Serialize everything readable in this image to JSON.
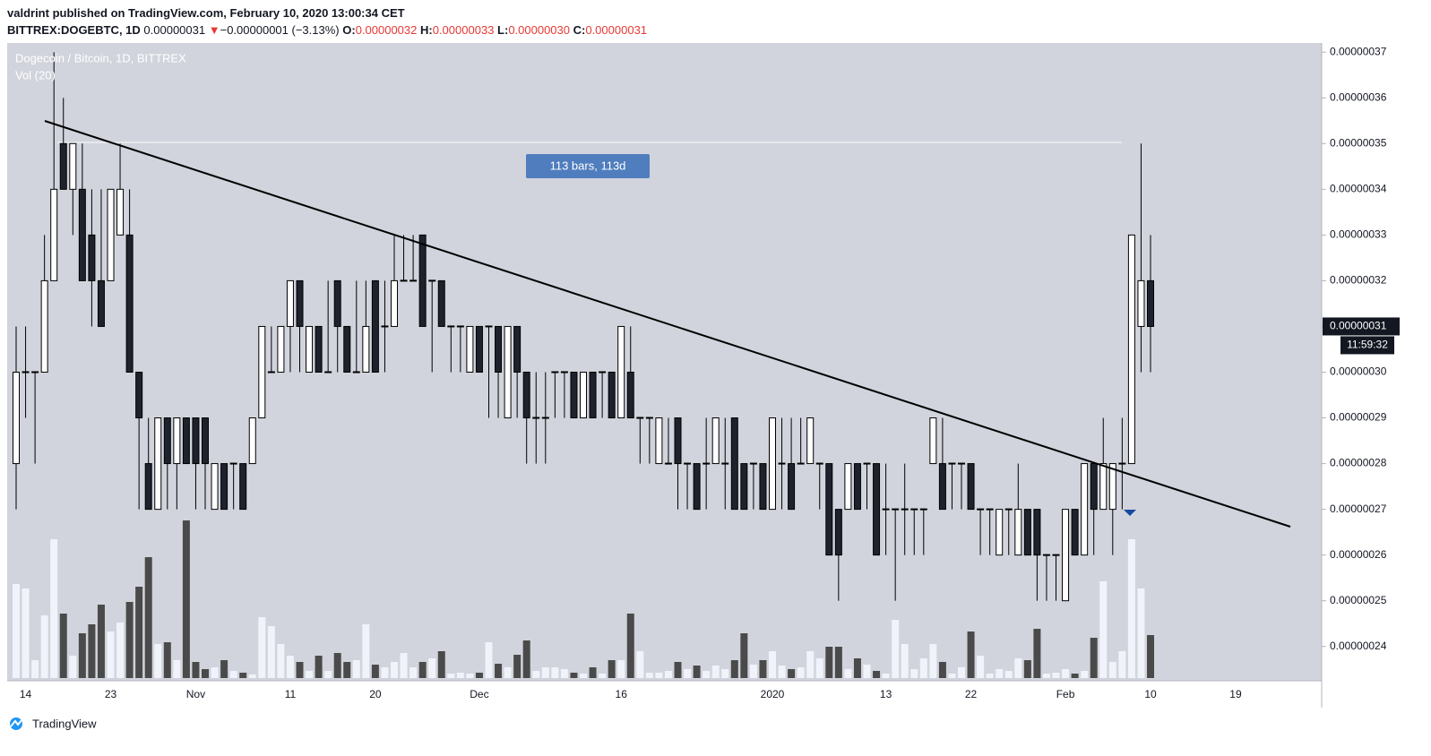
{
  "header": {
    "published": "valdrint published on TradingView.com, February 10, 2020 13:00:34 CET",
    "symbol": "BITTREX:DOGEBTC, 1D",
    "last": "0.00000031",
    "change_arrow": "▼",
    "change": "−0.00000001 (−3.13%)",
    "ohlc": [
      {
        "label": "O:",
        "value": "0.00000032"
      },
      {
        "label": "H:",
        "value": "0.00000033"
      },
      {
        "label": "L:",
        "value": "0.00000030"
      },
      {
        "label": "C:",
        "value": "0.00000031"
      }
    ]
  },
  "chart_data": {
    "type": "candlestick",
    "title": "Dogecoin / Bitcoin, 1D, BITTREX",
    "volume_title": "Vol (20)",
    "annotation": "113 bars, 113d",
    "last_price": {
      "value": 3.1e-07,
      "label": "0.00000031"
    },
    "countdown": "11:59:32",
    "categories": [
      null,
      "14",
      null,
      null,
      null,
      null,
      null,
      null,
      null,
      null,
      "23",
      null,
      null,
      null,
      null,
      null,
      null,
      null,
      null,
      "Nov",
      null,
      null,
      null,
      null,
      null,
      null,
      null,
      null,
      null,
      "11",
      null,
      null,
      null,
      null,
      null,
      null,
      null,
      null,
      "20",
      null,
      null,
      null,
      null,
      null,
      null,
      null,
      null,
      null,
      null,
      "Dec",
      null,
      null,
      null,
      null,
      null,
      null,
      null,
      null,
      null,
      null,
      null,
      null,
      null,
      null,
      "16",
      null,
      null,
      null,
      null,
      null,
      null,
      null,
      null,
      null,
      null,
      null,
      null,
      null,
      null,
      null,
      "2020",
      null,
      null,
      null,
      null,
      null,
      null,
      null,
      null,
      null,
      null,
      null,
      "13",
      null,
      null,
      null,
      null,
      null,
      null,
      null,
      null,
      "22",
      null,
      null,
      null,
      null,
      null,
      null,
      null,
      null,
      null,
      "Feb",
      null,
      null,
      null,
      null,
      null,
      null,
      null,
      null,
      "10",
      null,
      null,
      null,
      null,
      null,
      null,
      null,
      null,
      "19"
    ],
    "open": [
      2.8e-07,
      3e-07,
      3e-07,
      3e-07,
      3.2e-07,
      3.5e-07,
      3.4e-07,
      3.4e-07,
      3.3e-07,
      3.2e-07,
      3.2e-07,
      3.3e-07,
      3.3e-07,
      3e-07,
      2.8e-07,
      2.7e-07,
      2.9e-07,
      2.8e-07,
      2.9e-07,
      2.9e-07,
      2.9e-07,
      2.7e-07,
      2.8e-07,
      2.8e-07,
      2.8e-07,
      2.8e-07,
      2.9e-07,
      3e-07,
      3e-07,
      3.1e-07,
      3.2e-07,
      3e-07,
      3.1e-07,
      3e-07,
      3.2e-07,
      3.1e-07,
      3e-07,
      3e-07,
      3.2e-07,
      3.1e-07,
      3.1e-07,
      3.2e-07,
      3.2e-07,
      3.3e-07,
      3.2e-07,
      3.2e-07,
      3.1e-07,
      3.1e-07,
      3e-07,
      3.1e-07,
      3.1e-07,
      3.1e-07,
      2.9e-07,
      3.1e-07,
      3e-07,
      2.9e-07,
      2.9e-07,
      3e-07,
      3e-07,
      3e-07,
      2.9e-07,
      3e-07,
      3e-07,
      3e-07,
      2.9e-07,
      3e-07,
      2.9e-07,
      2.9e-07,
      2.8e-07,
      2.8e-07,
      2.9e-07,
      2.8e-07,
      2.8e-07,
      2.8e-07,
      2.8e-07,
      2.8e-07,
      2.9e-07,
      2.8e-07,
      2.8e-07,
      2.8e-07,
      2.7e-07,
      2.8e-07,
      2.8e-07,
      2.8e-07,
      2.8e-07,
      2.8e-07,
      2.8e-07,
      2.7e-07,
      2.7e-07,
      2.8e-07,
      2.8e-07,
      2.8e-07,
      2.7e-07,
      2.7e-07,
      2.7e-07,
      2.7e-07,
      2.7e-07,
      2.8e-07,
      2.8e-07,
      2.8e-07,
      2.8e-07,
      2.8e-07,
      2.7e-07,
      2.7e-07,
      2.6e-07,
      2.7e-07,
      2.6e-07,
      2.7e-07,
      2.7e-07,
      2.6e-07,
      2.6e-07,
      2.5e-07,
      2.7e-07,
      2.6e-07,
      2.8e-07,
      2.7e-07,
      2.7e-07,
      2.8e-07,
      2.8e-07,
      3.1e-07,
      3.2e-07,
      null,
      null,
      null,
      null,
      null,
      null,
      null,
      null,
      null
    ],
    "close": [
      3e-07,
      3e-07,
      3e-07,
      3.2e-07,
      3.4e-07,
      3.4e-07,
      3.5e-07,
      3.2e-07,
      3.2e-07,
      3.1e-07,
      3.4e-07,
      3.4e-07,
      3e-07,
      2.9e-07,
      2.7e-07,
      2.9e-07,
      2.8e-07,
      2.9e-07,
      2.8e-07,
      2.8e-07,
      2.8e-07,
      2.8e-07,
      2.7e-07,
      2.8e-07,
      2.7e-07,
      2.9e-07,
      3.1e-07,
      3e-07,
      3.1e-07,
      3.2e-07,
      3.1e-07,
      3.1e-07,
      3e-07,
      3e-07,
      3.1e-07,
      3e-07,
      3e-07,
      3.1e-07,
      3e-07,
      3.1e-07,
      3.2e-07,
      3.2e-07,
      3.2e-07,
      3.1e-07,
      3.2e-07,
      3.1e-07,
      3.1e-07,
      3.1e-07,
      3.1e-07,
      3e-07,
      3.1e-07,
      3e-07,
      3.1e-07,
      3e-07,
      2.9e-07,
      2.9e-07,
      2.9e-07,
      3e-07,
      3e-07,
      2.9e-07,
      3e-07,
      2.9e-07,
      3e-07,
      2.9e-07,
      3.1e-07,
      2.9e-07,
      2.9e-07,
      2.9e-07,
      2.9e-07,
      2.8e-07,
      2.8e-07,
      2.8e-07,
      2.7e-07,
      2.8e-07,
      2.9e-07,
      2.8e-07,
      2.7e-07,
      2.7e-07,
      2.8e-07,
      2.7e-07,
      2.9e-07,
      2.8e-07,
      2.7e-07,
      2.8e-07,
      2.9e-07,
      2.8e-07,
      2.6e-07,
      2.6e-07,
      2.8e-07,
      2.7e-07,
      2.8e-07,
      2.6e-07,
      2.7e-07,
      2.7e-07,
      2.7e-07,
      2.7e-07,
      2.7e-07,
      2.9e-07,
      2.7e-07,
      2.8e-07,
      2.8e-07,
      2.7e-07,
      2.7e-07,
      2.7e-07,
      2.7e-07,
      2.7e-07,
      2.7e-07,
      2.6e-07,
      2.6e-07,
      2.6e-07,
      2.6e-07,
      2.7e-07,
      2.6e-07,
      2.8e-07,
      2.7e-07,
      2.8e-07,
      2.8e-07,
      2.8e-07,
      3.3e-07,
      3.2e-07,
      3.1e-07,
      null,
      null,
      null,
      null,
      null,
      null,
      null,
      null,
      null
    ],
    "high": [
      3.1e-07,
      3.1e-07,
      3e-07,
      3.3e-07,
      3.7e-07,
      3.6e-07,
      3.5e-07,
      3.5e-07,
      3.4e-07,
      3.4e-07,
      3.4e-07,
      3.5e-07,
      3.4e-07,
      3e-07,
      2.9e-07,
      2.9e-07,
      2.9e-07,
      2.9e-07,
      2.9e-07,
      2.9e-07,
      2.9e-07,
      2.8e-07,
      2.8e-07,
      2.8e-07,
      2.8e-07,
      2.9e-07,
      3.1e-07,
      3.1e-07,
      3.1e-07,
      3.2e-07,
      3.2e-07,
      3.1e-07,
      3.1e-07,
      3.2e-07,
      3.2e-07,
      3.1e-07,
      3.2e-07,
      3.2e-07,
      3.2e-07,
      3.2e-07,
      3.3e-07,
      3.3e-07,
      3.3e-07,
      3.3e-07,
      3.2e-07,
      3.2e-07,
      3.1e-07,
      3.1e-07,
      3.1e-07,
      3.1e-07,
      3.1e-07,
      3.1e-07,
      3.1e-07,
      3.1e-07,
      3e-07,
      3e-07,
      3e-07,
      3e-07,
      3e-07,
      3e-07,
      3e-07,
      3e-07,
      3e-07,
      3e-07,
      3.1e-07,
      3.1e-07,
      2.9e-07,
      2.9e-07,
      2.9e-07,
      2.9e-07,
      2.9e-07,
      2.8e-07,
      2.8e-07,
      2.9e-07,
      2.9e-07,
      2.9e-07,
      2.9e-07,
      2.8e-07,
      2.8e-07,
      2.8e-07,
      2.9e-07,
      2.9e-07,
      2.9e-07,
      2.9e-07,
      2.9e-07,
      2.8e-07,
      2.8e-07,
      2.7e-07,
      2.8e-07,
      2.8e-07,
      2.8e-07,
      2.8e-07,
      2.8e-07,
      2.7e-07,
      2.8e-07,
      2.7e-07,
      2.7e-07,
      2.9e-07,
      2.9e-07,
      2.8e-07,
      2.8e-07,
      2.8e-07,
      2.7e-07,
      2.7e-07,
      2.7e-07,
      2.7e-07,
      2.8e-07,
      2.7e-07,
      2.7e-07,
      2.6e-07,
      2.6e-07,
      2.7e-07,
      2.7e-07,
      2.8e-07,
      2.8e-07,
      2.9e-07,
      2.8e-07,
      2.9e-07,
      3.3e-07,
      3.5e-07,
      3.3e-07,
      null,
      null,
      null,
      null,
      null,
      null,
      null,
      null,
      null
    ],
    "low": [
      2.7e-07,
      2.9e-07,
      2.8e-07,
      3e-07,
      3.2e-07,
      3.4e-07,
      3.3e-07,
      3.2e-07,
      3.1e-07,
      3.1e-07,
      3.2e-07,
      3.3e-07,
      3e-07,
      2.7e-07,
      2.7e-07,
      2.7e-07,
      2.7e-07,
      2.7e-07,
      2.8e-07,
      2.7e-07,
      2.7e-07,
      2.7e-07,
      2.7e-07,
      2.7e-07,
      2.7e-07,
      2.8e-07,
      2.9e-07,
      3e-07,
      3e-07,
      3e-07,
      3e-07,
      3e-07,
      3e-07,
      3e-07,
      3e-07,
      3e-07,
      3e-07,
      3e-07,
      3e-07,
      3e-07,
      3.1e-07,
      3.2e-07,
      3.2e-07,
      3.1e-07,
      3e-07,
      3.1e-07,
      3e-07,
      3e-07,
      3e-07,
      3e-07,
      2.9e-07,
      2.9e-07,
      2.9e-07,
      2.9e-07,
      2.8e-07,
      2.8e-07,
      2.8e-07,
      2.9e-07,
      2.9e-07,
      2.9e-07,
      2.9e-07,
      2.9e-07,
      2.9e-07,
      2.9e-07,
      2.9e-07,
      2.9e-07,
      2.8e-07,
      2.8e-07,
      2.8e-07,
      2.8e-07,
      2.7e-07,
      2.7e-07,
      2.7e-07,
      2.7e-07,
      2.8e-07,
      2.7e-07,
      2.7e-07,
      2.7e-07,
      2.7e-07,
      2.7e-07,
      2.7e-07,
      2.7e-07,
      2.7e-07,
      2.8e-07,
      2.8e-07,
      2.7e-07,
      2.6e-07,
      2.5e-07,
      2.7e-07,
      2.7e-07,
      2.7e-07,
      2.6e-07,
      2.6e-07,
      2.5e-07,
      2.6e-07,
      2.6e-07,
      2.6e-07,
      2.8e-07,
      2.7e-07,
      2.7e-07,
      2.7e-07,
      2.7e-07,
      2.6e-07,
      2.6e-07,
      2.6e-07,
      2.6e-07,
      2.6e-07,
      2.6e-07,
      2.5e-07,
      2.5e-07,
      2.5e-07,
      2.5e-07,
      2.6e-07,
      2.6e-07,
      2.6e-07,
      2.7e-07,
      2.6e-07,
      2.7e-07,
      2.8e-07,
      3e-07,
      3e-07,
      null,
      null,
      null,
      null,
      null,
      null,
      null,
      null,
      null
    ],
    "volume": [
      105,
      100,
      20,
      70,
      155,
      72,
      25,
      50,
      60,
      82,
      52,
      62,
      85,
      102,
      135,
      38,
      40,
      20,
      176,
      18,
      10,
      12,
      20,
      8,
      6,
      4,
      68,
      58,
      38,
      25,
      18,
      8,
      25,
      8,
      28,
      18,
      20,
      60,
      15,
      12,
      18,
      28,
      12,
      18,
      22,
      30,
      5,
      6,
      5,
      6,
      40,
      16,
      12,
      26,
      42,
      8,
      12,
      12,
      10,
      6,
      5,
      12,
      5,
      20,
      20,
      72,
      30,
      6,
      6,
      8,
      18,
      10,
      14,
      8,
      14,
      10,
      20,
      50,
      15,
      20,
      30,
      14,
      10,
      12,
      30,
      22,
      35,
      35,
      10,
      22,
      15,
      8,
      5,
      65,
      38,
      10,
      22,
      38,
      18,
      5,
      12,
      52,
      25,
      5,
      10,
      8,
      22,
      20,
      55,
      5,
      6,
      10,
      5,
      8,
      45,
      108,
      18,
      30,
      155,
      100,
      48,
      null,
      null,
      null,
      null,
      null,
      null,
      null,
      null,
      null
    ],
    "up_color": "#ffffff",
    "down_color": "#1e222d",
    "volume_up_color": "#f0f3fa",
    "volume_down_color": "#4a4a4a",
    "ylim": [
      2.325e-07,
      3.72e-07
    ],
    "yticks": [
      {
        "value": 2.4e-07,
        "label": "0.00000024"
      },
      {
        "value": 2.5e-07,
        "label": "0.00000025"
      },
      {
        "value": 2.6e-07,
        "label": "0.00000026"
      },
      {
        "value": 2.7e-07,
        "label": "0.00000027"
      },
      {
        "value": 2.8e-07,
        "label": "0.00000028"
      },
      {
        "value": 2.9e-07,
        "label": "0.00000029"
      },
      {
        "value": 3e-07,
        "label": "0.00000030"
      },
      {
        "value": 3.1e-07,
        "label": "0.00000031"
      },
      {
        "value": 3.2e-07,
        "label": "0.00000032"
      },
      {
        "value": 3.3e-07,
        "label": "0.00000033"
      },
      {
        "value": 3.4e-07,
        "label": "0.00000034"
      },
      {
        "value": 3.5e-07,
        "label": "0.00000035"
      },
      {
        "value": 3.6e-07,
        "label": "0.00000036"
      },
      {
        "value": 3.7e-07,
        "label": "0.00000037"
      }
    ]
  },
  "footer": "TradingView"
}
